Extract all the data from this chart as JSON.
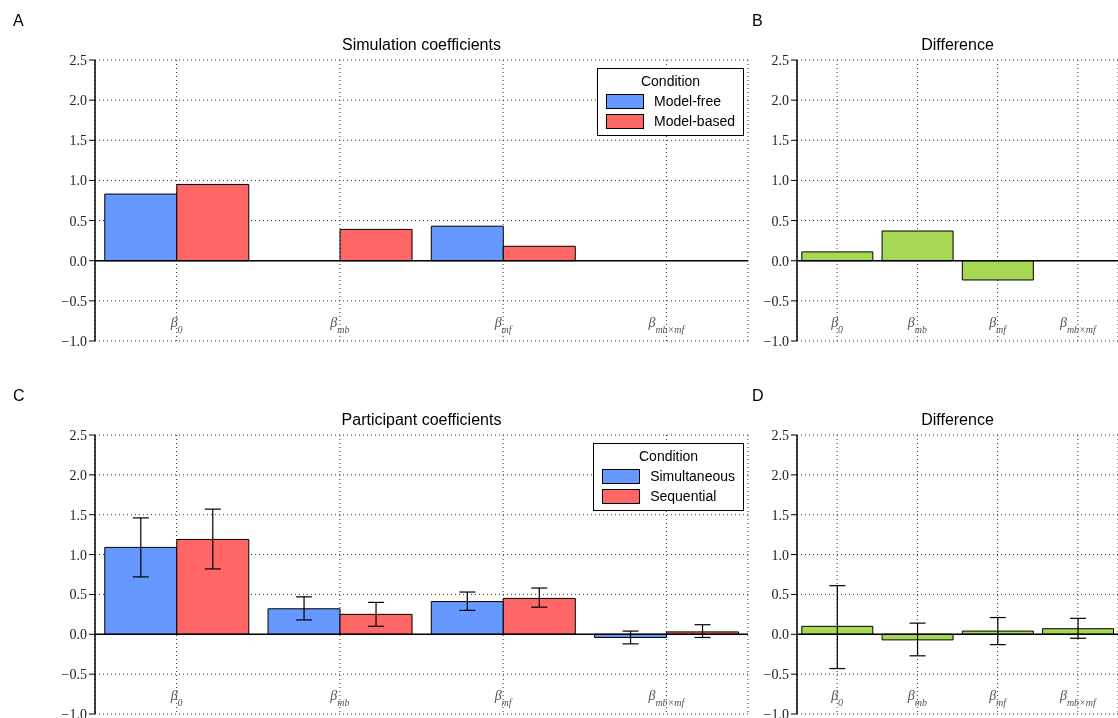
{
  "chart_data": [
    {
      "type": "bar",
      "title": "Simulation coefficients",
      "annotations": [
        "A"
      ],
      "categories": [
        "β$_{0}$",
        "β$_{mb}$",
        "β$_{mf}$",
        "β$_{mb×mf}$"
      ],
      "series": [
        {
          "name": "Model-free",
          "color": "#6699ff",
          "values": [
            0.83,
            null,
            0.43,
            null
          ]
        },
        {
          "name": "Model-based",
          "color": "#ff6666",
          "values": [
            0.95,
            0.39,
            0.18,
            null
          ]
        }
      ],
      "legend_title": "Condition",
      "legend": "top right",
      "ylim": [
        -1.0,
        2.5
      ],
      "yticks": [
        {
          "value": -1.0,
          "label": "−1.0"
        },
        {
          "value": -0.5,
          "label": "−0.5"
        },
        {
          "value": 0,
          "label": "0.0"
        },
        {
          "value": 0.5,
          "label": "0.5"
        },
        {
          "value": 1.0,
          "label": "1.0"
        },
        {
          "value": 1.5,
          "label": "1.5"
        },
        {
          "value": 2.0,
          "label": "2.0"
        },
        {
          "value": 2.5,
          "label": "2.5"
        }
      ],
      "grid": true,
      "ref_lines": [
        {
          "axis": "y",
          "value": 0,
          "color": "#000000"
        }
      ]
    },
    {
      "type": "bar",
      "title": "Difference",
      "annotations": [
        "B"
      ],
      "categories": [
        "β$_{0}$",
        "β$_{mb}$",
        "β$_{mf}$",
        "β$_{mb×mf}$"
      ],
      "series": [
        {
          "color": "#a6d854",
          "values": [
            0.11,
            0.37,
            -0.24,
            null
          ]
        }
      ],
      "ylim": [
        -1.0,
        2.5
      ],
      "yticks": [
        {
          "value": -1.0,
          "label": "−1.0"
        },
        {
          "value": -0.5,
          "label": "−0.5"
        },
        {
          "value": 0,
          "label": "0.0"
        },
        {
          "value": 0.5,
          "label": "0.5"
        },
        {
          "value": 1.0,
          "label": "1.0"
        },
        {
          "value": 1.5,
          "label": "1.5"
        },
        {
          "value": 2.0,
          "label": "2.0"
        },
        {
          "value": 2.5,
          "label": "2.5"
        }
      ],
      "grid": true,
      "ref_lines": [
        {
          "axis": "y",
          "value": 0,
          "color": "#000000"
        }
      ]
    },
    {
      "type": "bar",
      "title": "Participant coefficients",
      "annotations": [
        "C"
      ],
      "categories": [
        "β$_{0}$",
        "β$_{mb}$",
        "β$_{mf}$",
        "β$_{mb×mf}$"
      ],
      "series": [
        {
          "name": "Simultaneous",
          "color": "#6699ff",
          "values": [
            1.09,
            0.32,
            0.41,
            -0.04
          ],
          "errors": [
            [
              0.72,
              1.46
            ],
            [
              0.18,
              0.47
            ],
            [
              0.3,
              0.53
            ],
            [
              -0.12,
              0.04
            ]
          ]
        },
        {
          "name": "Sequential",
          "color": "#ff6666",
          "values": [
            1.19,
            0.25,
            0.45,
            0.03
          ],
          "errors": [
            [
              0.82,
              1.57
            ],
            [
              0.1,
              0.4
            ],
            [
              0.34,
              0.58
            ],
            [
              -0.04,
              0.12
            ]
          ]
        }
      ],
      "legend_title": "Condition",
      "legend": "top right",
      "ylim": [
        -1.0,
        2.5
      ],
      "yticks": [
        {
          "value": -1.0,
          "label": "−1.0"
        },
        {
          "value": -0.5,
          "label": "−0.5"
        },
        {
          "value": 0,
          "label": "0.0"
        },
        {
          "value": 0.5,
          "label": "0.5"
        },
        {
          "value": 1.0,
          "label": "1.0"
        },
        {
          "value": 1.5,
          "label": "1.5"
        },
        {
          "value": 2.0,
          "label": "2.0"
        },
        {
          "value": 2.5,
          "label": "2.5"
        }
      ],
      "grid": true,
      "ref_lines": [
        {
          "axis": "y",
          "value": 0,
          "color": "#000000"
        }
      ]
    },
    {
      "type": "bar",
      "title": "Difference",
      "annotations": [
        "D"
      ],
      "categories": [
        "β$_{0}$",
        "β$_{mb}$",
        "β$_{mf}$",
        "β$_{mb×mf}$"
      ],
      "series": [
        {
          "color": "#a6d854",
          "values": [
            0.1,
            -0.07,
            0.04,
            0.07
          ],
          "errors": [
            [
              -0.43,
              0.61
            ],
            [
              -0.27,
              0.14
            ],
            [
              -0.13,
              0.21
            ],
            [
              -0.05,
              0.2
            ]
          ]
        }
      ],
      "ylim": [
        -1.0,
        2.5
      ],
      "yticks": [
        {
          "value": -1.0,
          "label": "−1.0"
        },
        {
          "value": -0.5,
          "label": "−0.5"
        },
        {
          "value": 0,
          "label": "0.0"
        },
        {
          "value": 0.5,
          "label": "0.5"
        },
        {
          "value": 1.0,
          "label": "1.0"
        },
        {
          "value": 1.5,
          "label": "1.5"
        },
        {
          "value": 2.0,
          "label": "2.0"
        },
        {
          "value": 2.5,
          "label": "2.5"
        }
      ],
      "grid": true,
      "ref_lines": [
        {
          "axis": "y",
          "value": 0,
          "color": "#000000"
        }
      ]
    }
  ]
}
